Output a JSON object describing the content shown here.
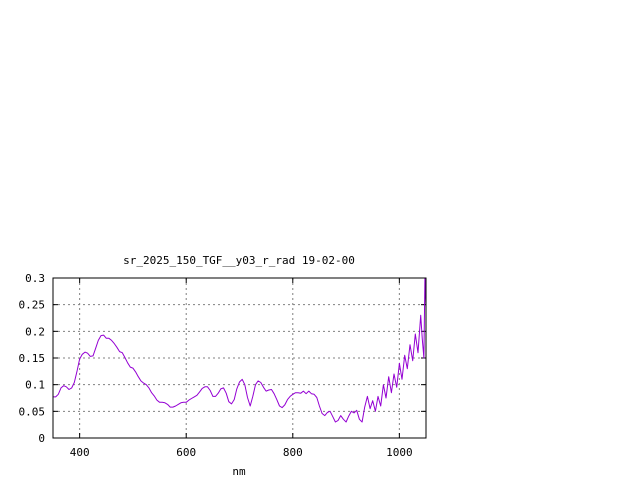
{
  "chart_data": {
    "type": "line",
    "title": "sr_2025_150_TGF__y03_r_rad 19-02-00",
    "xlabel": "nm",
    "ylabel": "",
    "xlim": [
      350,
      1050
    ],
    "ylim": [
      0,
      0.3
    ],
    "grid": true,
    "x_ticks": [
      400,
      600,
      800,
      1000
    ],
    "x_tick_labels": [
      "400",
      "600",
      "800",
      "1000"
    ],
    "y_ticks": [
      0,
      0.05,
      0.1,
      0.15,
      0.2,
      0.25,
      0.3
    ],
    "y_tick_labels": [
      "0",
      "0.05",
      "0.1",
      "0.15",
      "0.2",
      "0.25",
      "0.3"
    ],
    "line_color": "#9400d3",
    "series": [
      {
        "x": [
          350,
          355,
          360,
          365,
          370,
          375,
          380,
          385,
          390,
          395,
          400,
          405,
          410,
          415,
          420,
          425,
          430,
          435,
          440,
          445,
          450,
          455,
          460,
          465,
          470,
          475,
          480,
          485,
          490,
          495,
          500,
          505,
          510,
          515,
          520,
          525,
          530,
          535,
          540,
          545,
          550,
          555,
          560,
          565,
          570,
          575,
          580,
          585,
          590,
          595,
          600,
          605,
          610,
          615,
          620,
          625,
          630,
          635,
          640,
          645,
          650,
          655,
          660,
          665,
          670,
          675,
          680,
          685,
          690,
          695,
          700,
          705,
          710,
          715,
          720,
          725,
          730,
          735,
          740,
          745,
          750,
          755,
          760,
          765,
          770,
          775,
          780,
          785,
          790,
          795,
          800,
          805,
          810,
          815,
          820,
          825,
          830,
          835,
          840,
          845,
          850,
          855,
          860,
          865,
          870,
          875,
          880,
          885,
          890,
          895,
          900,
          905,
          910,
          915,
          920,
          925,
          930,
          935,
          940,
          945,
          950,
          955,
          960,
          965,
          970,
          975,
          980,
          985,
          990,
          995,
          1000,
          1005,
          1010,
          1015,
          1020,
          1025,
          1030,
          1035,
          1040,
          1043,
          1046,
          1048,
          1050
        ],
        "y": [
          0.077,
          0.077,
          0.082,
          0.094,
          0.098,
          0.096,
          0.091,
          0.094,
          0.104,
          0.125,
          0.148,
          0.157,
          0.161,
          0.159,
          0.153,
          0.154,
          0.168,
          0.183,
          0.192,
          0.193,
          0.187,
          0.187,
          0.183,
          0.177,
          0.17,
          0.162,
          0.16,
          0.151,
          0.141,
          0.133,
          0.131,
          0.124,
          0.115,
          0.107,
          0.103,
          0.1,
          0.094,
          0.085,
          0.079,
          0.071,
          0.067,
          0.067,
          0.066,
          0.063,
          0.058,
          0.058,
          0.06,
          0.063,
          0.066,
          0.067,
          0.067,
          0.071,
          0.074,
          0.077,
          0.08,
          0.086,
          0.093,
          0.096,
          0.096,
          0.089,
          0.078,
          0.078,
          0.084,
          0.092,
          0.094,
          0.084,
          0.068,
          0.064,
          0.072,
          0.092,
          0.105,
          0.11,
          0.1,
          0.076,
          0.06,
          0.078,
          0.1,
          0.107,
          0.104,
          0.095,
          0.088,
          0.09,
          0.091,
          0.083,
          0.072,
          0.06,
          0.057,
          0.062,
          0.072,
          0.078,
          0.082,
          0.085,
          0.085,
          0.084,
          0.088,
          0.083,
          0.088,
          0.083,
          0.082,
          0.076,
          0.06,
          0.046,
          0.042,
          0.048,
          0.05,
          0.04,
          0.03,
          0.033,
          0.042,
          0.035,
          0.03,
          0.041,
          0.05,
          0.047,
          0.052,
          0.035,
          0.03,
          0.058,
          0.078,
          0.055,
          0.07,
          0.05,
          0.078,
          0.06,
          0.1,
          0.075,
          0.115,
          0.085,
          0.12,
          0.095,
          0.14,
          0.11,
          0.155,
          0.13,
          0.175,
          0.145,
          0.195,
          0.16,
          0.23,
          0.185,
          0.15,
          0.3,
          0.245
        ]
      }
    ]
  }
}
